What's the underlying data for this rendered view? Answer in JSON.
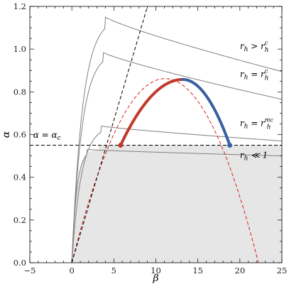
{
  "chart_data": {
    "type": "line",
    "xlabel": "β",
    "ylabel": "α",
    "xlim": [
      -5,
      25
    ],
    "ylim": [
      0,
      1.2
    ],
    "xticks": [
      -5,
      0,
      5,
      10,
      15,
      20,
      25
    ],
    "xtick_labels": [
      "−5",
      "0",
      "5",
      "10",
      "15",
      "20",
      "25"
    ],
    "yticks": [
      0,
      0.2,
      0.4,
      0.6,
      0.8,
      1.0,
      1.2
    ],
    "ytick_labels": [
      "0.0",
      "0.2",
      "0.4",
      "0.6",
      "0.8",
      "1.0",
      "1.2"
    ],
    "alpha_c": 0.55,
    "shaded_region_color": "#e6e6e6",
    "family_curves": [
      {
        "peak_beta": 1.8,
        "peak_alpha": 0.53,
        "tail_alpha_at_25": 0.5
      },
      {
        "peak_beta": 3.5,
        "peak_alpha": 0.64,
        "tail_alpha_at_25": 0.57
      },
      {
        "peak_beta": 3.7,
        "peak_alpha": 0.985,
        "tail_alpha_at_25": 0.765
      },
      {
        "peak_beta": 4.0,
        "peak_alpha": 1.15,
        "tail_alpha_at_25": 0.895
      }
    ],
    "family_color": "#808080",
    "critical_curve": {
      "peak": [
        13.2,
        0.858
      ],
      "left_end": [
        5.8,
        0.55
      ],
      "right_end": [
        18.8,
        0.55
      ],
      "left_color": "#c0392b",
      "right_color": "#3a5fa0"
    },
    "dashed_extension": {
      "x": [
        0,
        22.2
      ],
      "apex_y": 0.862,
      "color": "#dd1c1c"
    },
    "dashed_diagonal": {
      "from": [
        0,
        0
      ],
      "to": [
        9,
        1.2
      ],
      "color": "#000000"
    },
    "annotations": [
      {
        "pos": [
          20,
          1.0
        ],
        "main": "r",
        "sub": "h",
        "op": " > r",
        "sup2": "c",
        "sub2": "h"
      },
      {
        "pos": [
          20,
          0.87
        ],
        "main": "r",
        "sub": "h",
        "op": " = r",
        "sup2": "c",
        "sub2": "h"
      },
      {
        "pos": [
          20,
          0.64
        ],
        "main": "r",
        "sub": "h",
        "op": " = r",
        "sup2": "mc",
        "sub2": "h"
      },
      {
        "pos": [
          20,
          0.49
        ],
        "main": "r",
        "sub": "h",
        "op": " ≪ 1",
        "sup2": "",
        "sub2": ""
      }
    ],
    "alpha_c_label": {
      "pos": [
        -4.6,
        0.585
      ],
      "main": "α",
      "op": " = α",
      "sub2": "c"
    }
  }
}
